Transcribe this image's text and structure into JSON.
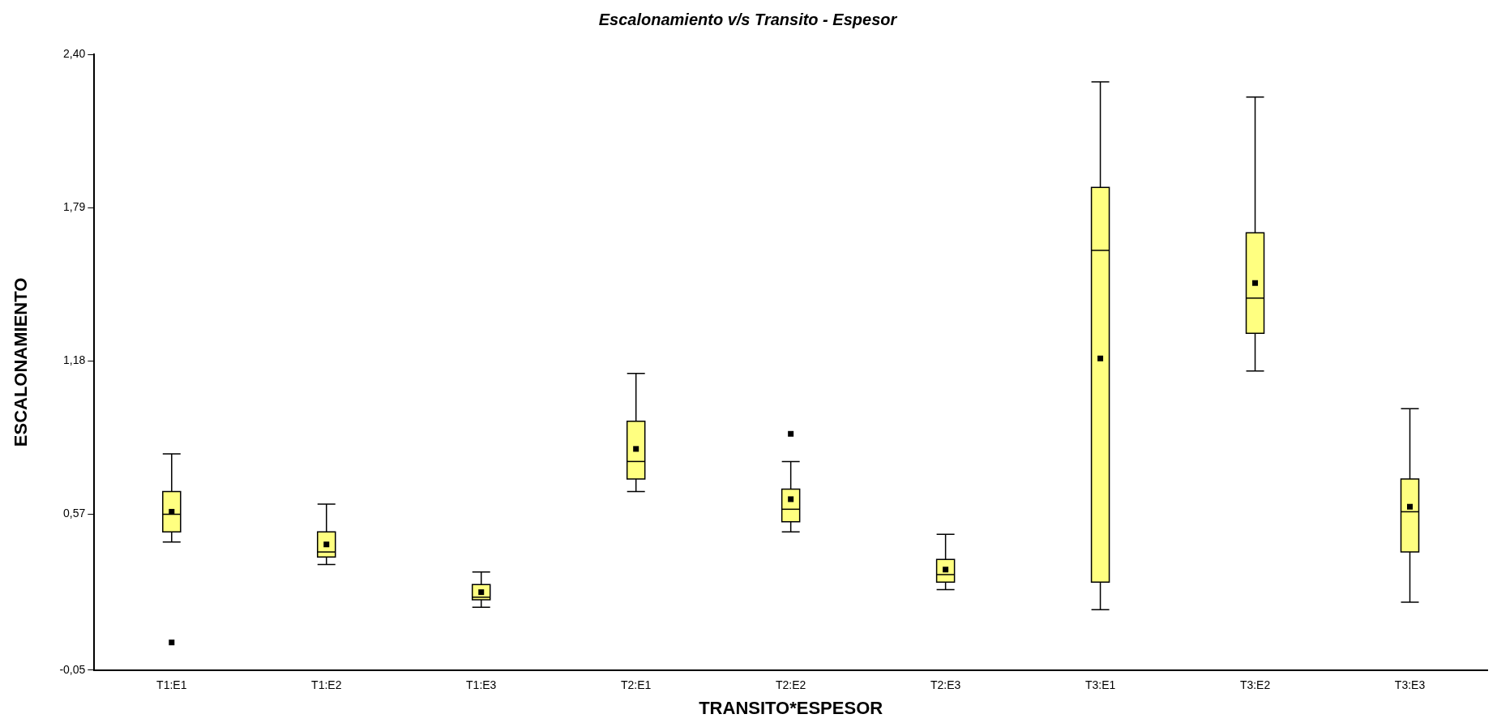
{
  "chart_data": {
    "type": "box",
    "title": "Escalonamiento v/s Transito - Espesor",
    "xlabel": "TRANSITO*ESPESOR",
    "ylabel": "ESCALONAMIENTO",
    "categories": [
      "T1:E1",
      "T1:E2",
      "T1:E3",
      "T2:E1",
      "T2:E2",
      "T2:E3",
      "T3:E1",
      "T3:E2",
      "T3:E3"
    ],
    "color": "#ffff80",
    "marker": "square",
    "grid": false,
    "ylim": [
      -0.05,
      2.4
    ],
    "yticks": [
      {
        "value": -0.05,
        "label": "-0,05"
      },
      {
        "value": 0.57,
        "label": "0,57"
      },
      {
        "value": 1.18,
        "label": "1,18"
      },
      {
        "value": 1.79,
        "label": "1,79"
      },
      {
        "value": 2.4,
        "label": "2,40"
      }
    ],
    "boxes": [
      {
        "low": 0.46,
        "q1": 0.5,
        "median": 0.57,
        "q3": 0.66,
        "high": 0.81,
        "mean": 0.58,
        "outliers": [
          0.06
        ]
      },
      {
        "low": 0.37,
        "q1": 0.4,
        "median": 0.42,
        "q3": 0.5,
        "high": 0.61,
        "mean": 0.45
      },
      {
        "low": 0.2,
        "q1": 0.23,
        "median": 0.24,
        "q3": 0.29,
        "high": 0.34,
        "mean": 0.26
      },
      {
        "low": 0.66,
        "q1": 0.71,
        "median": 0.78,
        "q3": 0.94,
        "high": 1.13,
        "mean": 0.83
      },
      {
        "low": 0.5,
        "q1": 0.54,
        "median": 0.59,
        "q3": 0.67,
        "high": 0.78,
        "mean": 0.63,
        "outliers": [
          0.89
        ]
      },
      {
        "low": 0.27,
        "q1": 0.3,
        "median": 0.33,
        "q3": 0.39,
        "high": 0.49,
        "mean": 0.35
      },
      {
        "low": 0.19,
        "q1": 0.3,
        "median": 1.62,
        "q3": 1.87,
        "high": 2.29,
        "mean": 1.19
      },
      {
        "low": 1.14,
        "q1": 1.29,
        "median": 1.43,
        "q3": 1.69,
        "high": 2.23,
        "mean": 1.49
      },
      {
        "low": 0.22,
        "q1": 0.42,
        "median": 0.58,
        "q3": 0.71,
        "high": 0.99,
        "mean": 0.6
      }
    ]
  }
}
